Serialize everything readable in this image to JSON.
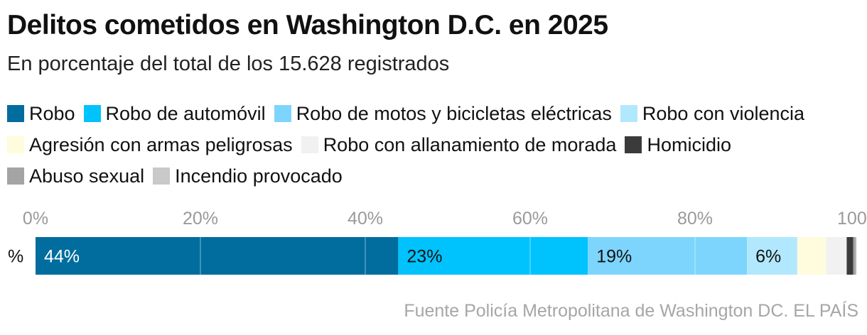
{
  "chart_data": {
    "type": "bar",
    "orientation": "horizontal-stacked",
    "title": "Delitos cometidos en Washington D.C. en 2025",
    "subtitle": "En porcentaje del total de los 15.628 registrados",
    "categories": [
      "%"
    ],
    "xlim": [
      0,
      100
    ],
    "xticks": [
      "0%",
      "20%",
      "40%",
      "60%",
      "80%",
      "100%"
    ],
    "grid": true,
    "legend_position": "top",
    "series": [
      {
        "name": "Robo",
        "value": 44,
        "color": "#006d9e",
        "label": "44%",
        "label_color": "#ffffff"
      },
      {
        "name": "Robo de automóvil",
        "value": 23,
        "color": "#00c3fe",
        "label": "23%",
        "label_color": "#111111"
      },
      {
        "name": "Robo de motos y bicicletas eléctricas",
        "value": 19.3,
        "color": "#7dd5fd",
        "label": "19%",
        "label_color": "#111111"
      },
      {
        "name": "Robo con violencia",
        "value": 6.1,
        "color": "#b2e8fd",
        "label": "6%",
        "label_color": "#111111"
      },
      {
        "name": "Agresión con armas peligrosas",
        "value": 3.5,
        "color": "#fefcdc",
        "label": "",
        "label_color": "#111111"
      },
      {
        "name": "Robo con allanamiento de morada",
        "value": 2.5,
        "color": "#f1f1f1",
        "label": "",
        "label_color": "#111111"
      },
      {
        "name": "Homicidio",
        "value": 0.8,
        "color": "#3b3b3b",
        "label": "",
        "label_color": "#111111"
      },
      {
        "name": "Abuso sexual",
        "value": 0.3,
        "color": "#a4a4a4",
        "label": "",
        "label_color": "#111111"
      },
      {
        "name": "Incendio provocado",
        "value": 0.1,
        "color": "#c9c9c9",
        "label": "",
        "label_color": "#111111"
      }
    ]
  },
  "source": "Fuente Policía Metropolitana de Washington DC. EL PAÍS"
}
